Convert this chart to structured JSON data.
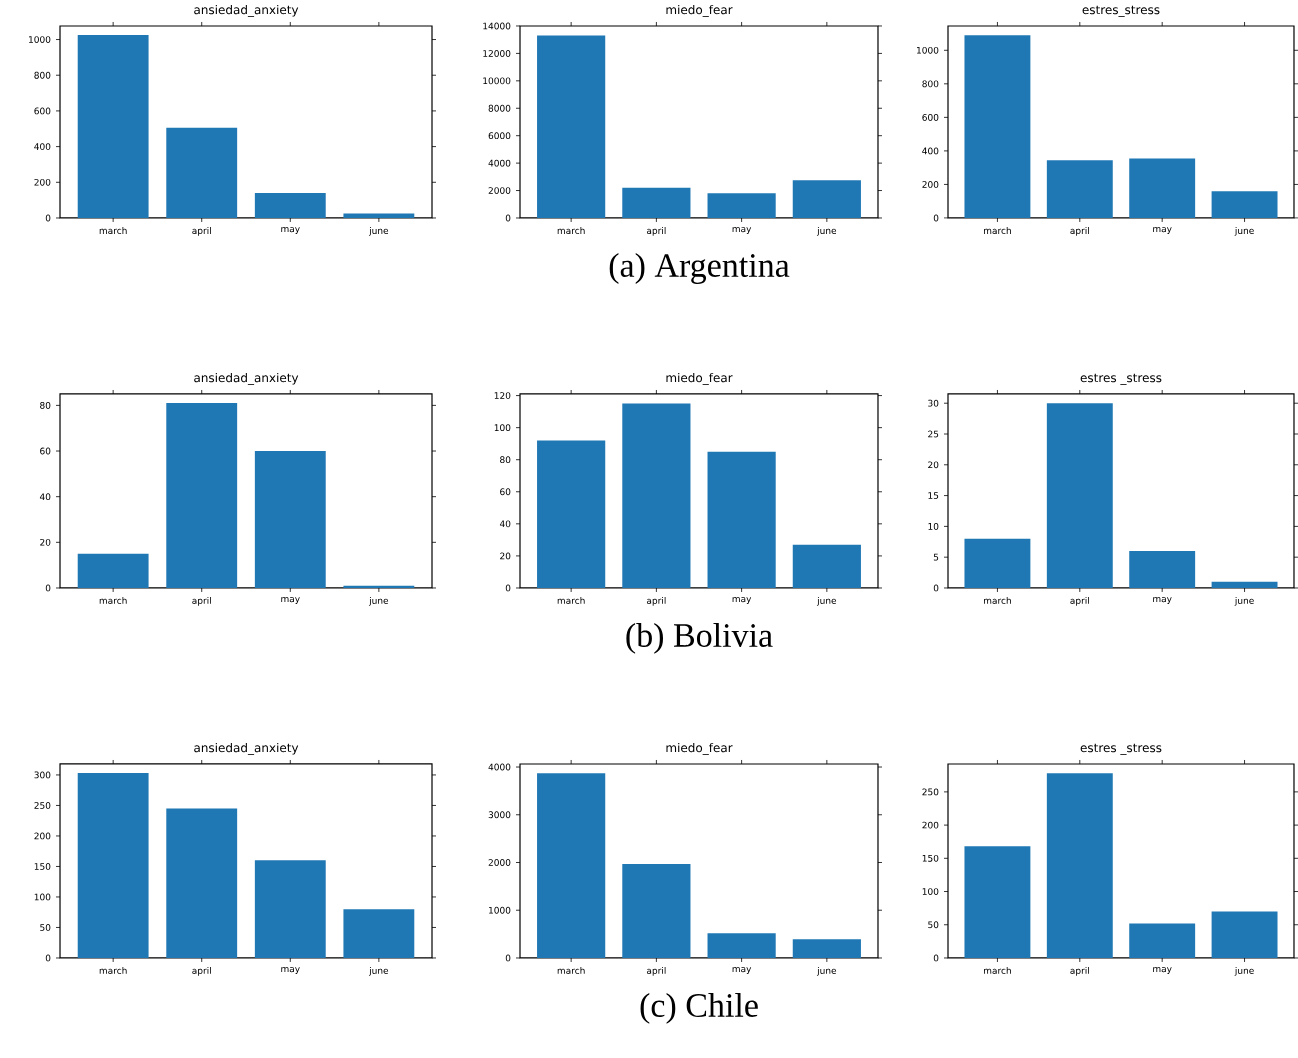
{
  "chart_data": [
    {
      "type": "bar",
      "title": "ansiedad_anxiety",
      "categories": [
        "march",
        "april",
        "may",
        "june"
      ],
      "values": [
        1025,
        505,
        140,
        25
      ],
      "color": "#1f77b4",
      "ylim": [
        0,
        1076
      ],
      "yticks": [
        0,
        200,
        400,
        600,
        800,
        1000
      ]
    },
    {
      "type": "bar",
      "title": "miedo_fear",
      "categories": [
        "march",
        "april",
        "may",
        "june"
      ],
      "values": [
        13300,
        2200,
        1800,
        2750
      ],
      "color": "#1f77b4",
      "ylim": [
        0,
        14000
      ],
      "yticks": [
        0,
        2000,
        4000,
        6000,
        8000,
        10000,
        12000,
        14000
      ],
      "annotations": [
        "(a) Argentina"
      ]
    },
    {
      "type": "bar",
      "title": "estres_stress",
      "categories": [
        "march",
        "april",
        "may",
        "june"
      ],
      "values": [
        1090,
        345,
        355,
        160
      ],
      "color": "#1f77b4",
      "ylim": [
        0,
        1145
      ],
      "yticks": [
        0,
        200,
        400,
        600,
        800,
        1000
      ]
    },
    {
      "type": "bar",
      "title": "ansiedad_anxiety",
      "categories": [
        "march",
        "april",
        "may",
        "june"
      ],
      "values": [
        15,
        81,
        60,
        1
      ],
      "color": "#1f77b4",
      "ylim": [
        0,
        85
      ],
      "yticks": [
        0,
        20,
        40,
        60,
        80
      ]
    },
    {
      "type": "bar",
      "title": "miedo_fear",
      "categories": [
        "march",
        "april",
        "may",
        "june"
      ],
      "values": [
        92,
        115,
        85,
        27
      ],
      "color": "#1f77b4",
      "ylim": [
        0,
        121
      ],
      "yticks": [
        0,
        20,
        40,
        60,
        80,
        100,
        120
      ],
      "annotations": [
        "(b) Bolivia"
      ]
    },
    {
      "type": "bar",
      "title": "estres _stress",
      "categories": [
        "march",
        "april",
        "may",
        "june"
      ],
      "values": [
        8,
        30,
        6,
        1
      ],
      "color": "#1f77b4",
      "ylim": [
        0,
        31.5
      ],
      "yticks": [
        0,
        5,
        10,
        15,
        20,
        25,
        30
      ]
    },
    {
      "type": "bar",
      "title": "ansiedad_anxiety",
      "categories": [
        "march",
        "april",
        "may",
        "june"
      ],
      "values": [
        303,
        245,
        160,
        80
      ],
      "color": "#1f77b4",
      "ylim": [
        0,
        318
      ],
      "yticks": [
        0,
        50,
        100,
        150,
        200,
        250,
        300
      ]
    },
    {
      "type": "bar",
      "title": "miedo_fear",
      "categories": [
        "march",
        "april",
        "may",
        "june"
      ],
      "values": [
        3870,
        1970,
        520,
        390
      ],
      "color": "#1f77b4",
      "ylim": [
        0,
        4064
      ],
      "yticks": [
        0,
        1000,
        2000,
        3000,
        4000
      ],
      "annotations": [
        "(c) Chile"
      ]
    },
    {
      "type": "bar",
      "title": "estres _stress",
      "categories": [
        "march",
        "april",
        "may",
        "june"
      ],
      "values": [
        168,
        278,
        52,
        70
      ],
      "color": "#1f77b4",
      "ylim": [
        0,
        292
      ],
      "yticks": [
        0,
        50,
        100,
        150,
        200,
        250
      ]
    }
  ]
}
